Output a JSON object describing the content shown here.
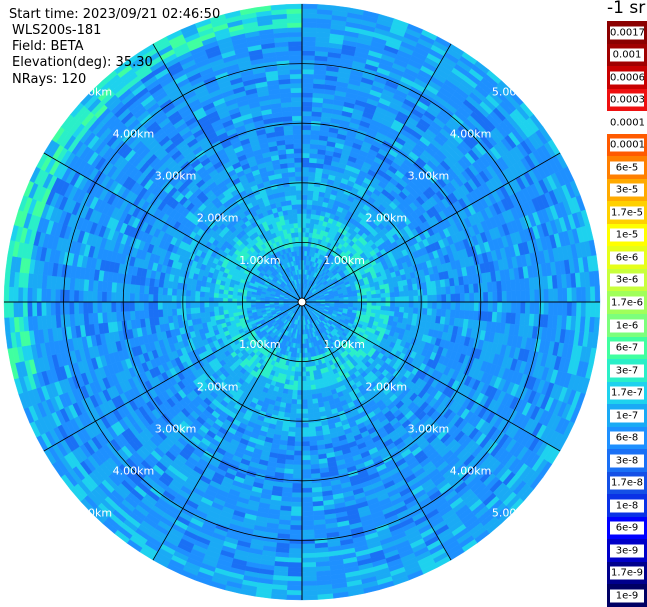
{
  "info": {
    "start_time": "Start time: 2023/09/21 02:46:50",
    "instrument": "WLS200s-181",
    "field": "Field: BETA",
    "elevation": "Elevation(deg): 35.30",
    "nrays": "NRays: 120"
  },
  "colorbar": {
    "unit_label": "-1 sr",
    "levels": [
      {
        "label": "0.0017",
        "color": "#8b0000"
      },
      {
        "label": "0.001",
        "color": "#a00000"
      },
      {
        "label": "0.0006",
        "color": "#c80000"
      },
      {
        "label": "0.0003",
        "color": "#ee1010"
      },
      {
        "label": "0.00017",
        "color": "#ffffff"
      },
      {
        "label": "0.0001",
        "color": "#ff5a00"
      },
      {
        "label": "6e-5",
        "color": "#ff7f00"
      },
      {
        "label": "3e-5",
        "color": "#ffaa00"
      },
      {
        "label": "1.7e-5",
        "color": "#ffd000"
      },
      {
        "label": "1e-5",
        "color": "#ffff00"
      },
      {
        "label": "6e-6",
        "color": "#e6ff1a"
      },
      {
        "label": "3e-6",
        "color": "#c8ff3c"
      },
      {
        "label": "1.7e-6",
        "color": "#a0ff5a"
      },
      {
        "label": "1e-6",
        "color": "#7cff7c"
      },
      {
        "label": "6e-7",
        "color": "#40ffa0"
      },
      {
        "label": "3e-7",
        "color": "#2aefc8"
      },
      {
        "label": "1.7e-7",
        "color": "#1ed2ee"
      },
      {
        "label": "1e-7",
        "color": "#1aaaf5"
      },
      {
        "label": "6e-8",
        "color": "#1e90ff"
      },
      {
        "label": "3e-8",
        "color": "#1a70f5"
      },
      {
        "label": "1.7e-8",
        "color": "#1450e6"
      },
      {
        "label": "1e-8",
        "color": "#0a32e6"
      },
      {
        "label": "6e-9",
        "color": "#0000ff"
      },
      {
        "label": "3e-9",
        "color": "#0000c8"
      },
      {
        "label": "1.7e-9",
        "color": "#00008c"
      },
      {
        "label": "1e-9",
        "color": "#000064"
      }
    ]
  },
  "ppi": {
    "range_labels": [
      "1.00km",
      "2.00km",
      "3.00km",
      "4.00km",
      "5.00km"
    ],
    "max_range_km": 5.0,
    "ring_ranges_km": [
      1,
      2,
      3,
      4
    ],
    "spoke_count": 12,
    "ray_count": 120
  }
}
